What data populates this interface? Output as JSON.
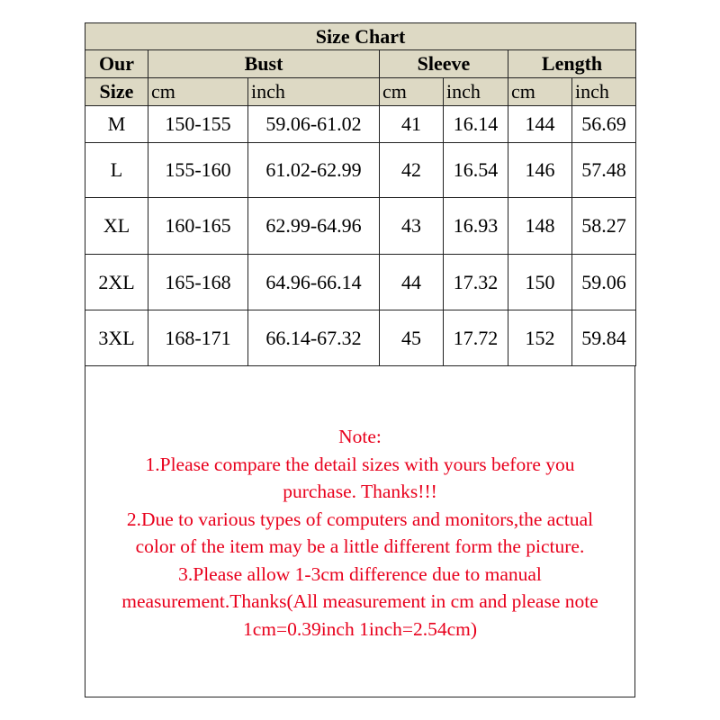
{
  "title": "Size Chart",
  "headers": {
    "our": "Our",
    "size": "Size",
    "bust": "Bust",
    "sleeve": "Sleeve",
    "length": "Length",
    "units": [
      "cm",
      "inch",
      "cm",
      "inch",
      "cm",
      "inch"
    ]
  },
  "rows": [
    [
      "M",
      "150-155",
      "59.06-61.02",
      "41",
      "16.14",
      "144",
      "56.69"
    ],
    [
      "L",
      "155-160",
      "61.02-62.99",
      "42",
      "16.54",
      "146",
      "57.48"
    ],
    [
      "XL",
      "160-165",
      "62.99-64.96",
      "43",
      "16.93",
      "148",
      "58.27"
    ],
    [
      "2XL",
      "165-168",
      "64.96-66.14",
      "44",
      "17.32",
      "150",
      "59.06"
    ],
    [
      "3XL",
      "168-171",
      "66.14-67.32",
      "45",
      "17.72",
      "152",
      "59.84"
    ]
  ],
  "note": [
    "Note:",
    "1.Please compare the detail sizes with yours before you",
    "purchase. Thanks!!!",
    "2.Due to various types of computers and monitors,the actual",
    "color of the item may be a little different form the picture.",
    "3.Please allow 1-3cm difference due to manual",
    "measurement.Thanks(All measurement in cm and please note",
    "1cm=0.39inch 1inch=2.54cm)"
  ],
  "colors": {
    "header_bg": "#ddd9c4",
    "note_text": "#e8001c"
  }
}
